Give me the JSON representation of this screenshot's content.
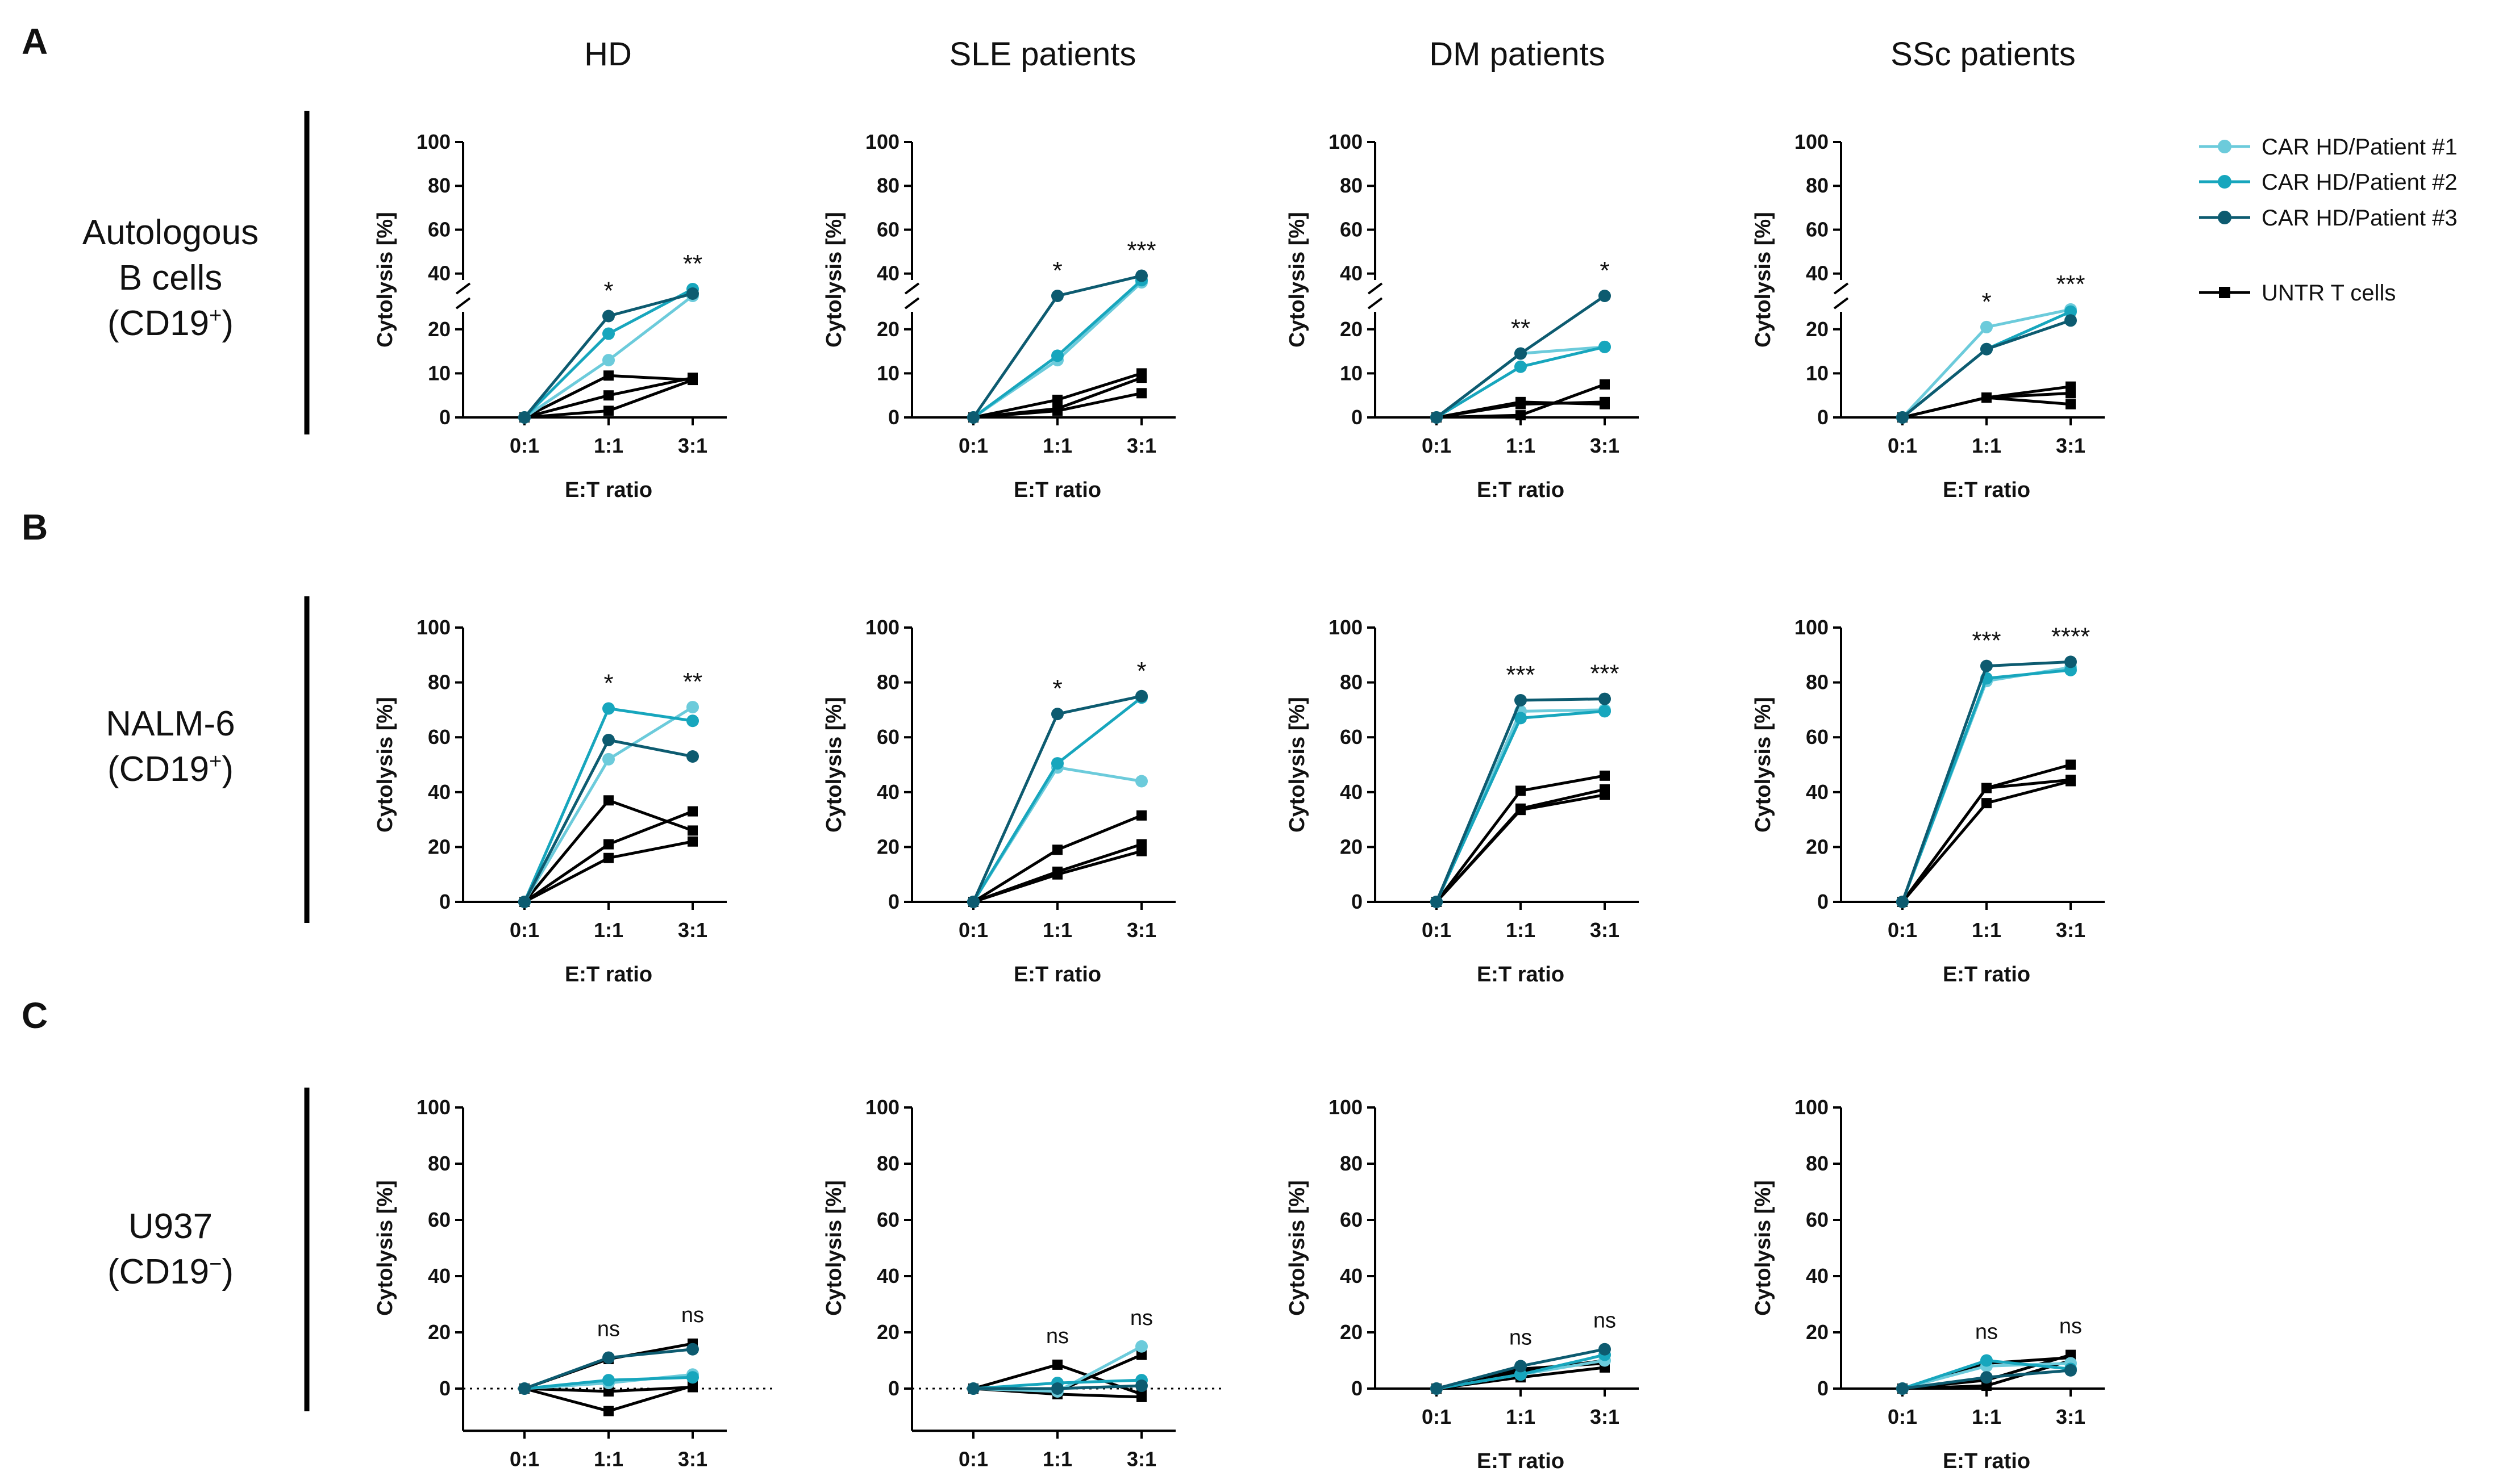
{
  "figure": {
    "column_titles": [
      "HD",
      "SLE patients",
      "DM patients",
      "SSc patients"
    ],
    "rows": [
      {
        "letter": "A",
        "label_lines": [
          "Autologous",
          "B cells",
          "(CD19",
          "+",
          ")"
        ]
      },
      {
        "letter": "B",
        "label_lines": [
          "NALM-6",
          "(CD19",
          "+",
          ")"
        ]
      },
      {
        "letter": "C",
        "label_lines": [
          "U937",
          "(CD19",
          "−",
          ")"
        ]
      }
    ],
    "legend": {
      "entries": [
        {
          "label": "CAR HD/Patient #1",
          "color": "#6ccbdb",
          "marker": "circle"
        },
        {
          "label": "CAR HD/Patient #2",
          "color": "#17a6bd",
          "marker": "circle"
        },
        {
          "label": "CAR HD/Patient #3",
          "color": "#0d5b70",
          "marker": "circle"
        },
        {
          "label": "UNTR T cells",
          "color": "#000000",
          "marker": "square"
        }
      ]
    }
  },
  "chart_data": [
    {
      "type": "line",
      "row": "A",
      "col": "HD",
      "title": "HD",
      "xlabel": "E:T ratio",
      "ylabel": "Cytolysis [%]",
      "categories": [
        "0:1",
        "1:1",
        "3:1"
      ],
      "ylim": [
        0,
        100
      ],
      "yticks": [
        0,
        10,
        20,
        40,
        60,
        80,
        100
      ],
      "axis_break": [
        25,
        35
      ],
      "series": [
        {
          "name": "CAR HD/Patient #1",
          "values": [
            0,
            13,
            30
          ]
        },
        {
          "name": "CAR HD/Patient #2",
          "values": [
            0,
            19,
            33
          ]
        },
        {
          "name": "CAR HD/Patient #3",
          "values": [
            0,
            23,
            31
          ]
        },
        {
          "name": "UNTR T cells",
          "values": [
            0,
            9.5,
            8.5
          ]
        },
        {
          "name": "UNTR T cells",
          "values": [
            0,
            5,
            9
          ]
        },
        {
          "name": "UNTR T cells",
          "values": [
            0,
            1.5,
            8.5
          ]
        }
      ],
      "significance": [
        "*",
        "**"
      ]
    },
    {
      "type": "line",
      "row": "A",
      "col": "SLE patients",
      "title": "SLE patients",
      "xlabel": "E:T ratio",
      "ylabel": "Cytolysis [%]",
      "categories": [
        "0:1",
        "1:1",
        "3:1"
      ],
      "ylim": [
        0,
        100
      ],
      "yticks": [
        0,
        10,
        20,
        40,
        60,
        80,
        100
      ],
      "axis_break": [
        25,
        35
      ],
      "series": [
        {
          "name": "CAR HD/Patient #1",
          "values": [
            0,
            13,
            36
          ]
        },
        {
          "name": "CAR HD/Patient #2",
          "values": [
            0,
            14,
            37
          ]
        },
        {
          "name": "CAR HD/Patient #3",
          "values": [
            0,
            30,
            39
          ]
        },
        {
          "name": "UNTR T cells",
          "values": [
            0,
            4,
            10
          ]
        },
        {
          "name": "UNTR T cells",
          "values": [
            0,
            2,
            9
          ]
        },
        {
          "name": "UNTR T cells",
          "values": [
            0,
            1.5,
            5.5
          ]
        }
      ],
      "significance": [
        "*",
        "***"
      ]
    },
    {
      "type": "line",
      "row": "A",
      "col": "DM patients",
      "title": "DM patients",
      "xlabel": "E:T ratio",
      "ylabel": "Cytolysis [%]",
      "categories": [
        "0:1",
        "1:1",
        "3:1"
      ],
      "ylim": [
        0,
        100
      ],
      "yticks": [
        0,
        10,
        20,
        40,
        60,
        80,
        100
      ],
      "axis_break": [
        25,
        35
      ],
      "series": [
        {
          "name": "CAR HD/Patient #1",
          "values": [
            0,
            14.5,
            16
          ]
        },
        {
          "name": "CAR HD/Patient #2",
          "values": [
            0,
            11.5,
            16
          ]
        },
        {
          "name": "CAR HD/Patient #3",
          "values": [
            0,
            14.5,
            30
          ]
        },
        {
          "name": "UNTR T cells",
          "values": [
            0,
            3.5,
            3
          ]
        },
        {
          "name": "UNTR T cells",
          "values": [
            0,
            3,
            3.5
          ]
        },
        {
          "name": "UNTR T cells",
          "values": [
            0,
            0.5,
            7.5
          ]
        }
      ],
      "significance": [
        "**",
        "*"
      ]
    },
    {
      "type": "line",
      "row": "A",
      "col": "SSc patients",
      "title": "SSc patients",
      "xlabel": "E:T ratio",
      "ylabel": "Cytolysis [%]",
      "categories": [
        "0:1",
        "1:1",
        "3:1"
      ],
      "ylim": [
        0,
        100
      ],
      "yticks": [
        0,
        10,
        20,
        40,
        60,
        80,
        100
      ],
      "axis_break": [
        25,
        35
      ],
      "series": [
        {
          "name": "CAR HD/Patient #1",
          "values": [
            0,
            20.5,
            24.5
          ]
        },
        {
          "name": "CAR HD/Patient #2",
          "values": [
            0,
            15.5,
            24
          ]
        },
        {
          "name": "CAR HD/Patient #3",
          "values": [
            0,
            15.5,
            22
          ]
        },
        {
          "name": "UNTR T cells",
          "values": [
            0,
            4.5,
            7
          ]
        },
        {
          "name": "UNTR T cells",
          "values": [
            0,
            4.5,
            5.5
          ]
        },
        {
          "name": "UNTR T cells",
          "values": [
            0,
            4.5,
            3
          ]
        }
      ],
      "significance": [
        "*",
        "***"
      ]
    },
    {
      "type": "line",
      "row": "B",
      "col": "HD",
      "title": "HD",
      "xlabel": "E:T ratio",
      "ylabel": "Cytolysis [%]",
      "categories": [
        "0:1",
        "1:1",
        "3:1"
      ],
      "ylim": [
        0,
        100
      ],
      "yticks": [
        0,
        20,
        40,
        60,
        80,
        100
      ],
      "series": [
        {
          "name": "CAR HD/Patient #1",
          "values": [
            0,
            52,
            71
          ]
        },
        {
          "name": "CAR HD/Patient #2",
          "values": [
            0,
            70.5,
            66
          ]
        },
        {
          "name": "CAR HD/Patient #3",
          "values": [
            0,
            59,
            53
          ]
        },
        {
          "name": "UNTR T cells",
          "values": [
            0,
            37,
            26
          ]
        },
        {
          "name": "UNTR T cells",
          "values": [
            0,
            21,
            33
          ]
        },
        {
          "name": "UNTR T cells",
          "values": [
            0,
            16,
            22
          ]
        }
      ],
      "significance": [
        "*",
        "**"
      ]
    },
    {
      "type": "line",
      "row": "B",
      "col": "SLE patients",
      "title": "SLE patients",
      "xlabel": "E:T ratio",
      "ylabel": "Cytolysis [%]",
      "categories": [
        "0:1",
        "1:1",
        "3:1"
      ],
      "ylim": [
        0,
        100
      ],
      "yticks": [
        0,
        20,
        40,
        60,
        80,
        100
      ],
      "series": [
        {
          "name": "CAR HD/Patient #1",
          "values": [
            0,
            49,
            44
          ]
        },
        {
          "name": "CAR HD/Patient #2",
          "values": [
            0,
            50.5,
            74.5
          ]
        },
        {
          "name": "CAR HD/Patient #3",
          "values": [
            0,
            68.5,
            75
          ]
        },
        {
          "name": "UNTR T cells",
          "values": [
            0,
            19,
            31.5
          ]
        },
        {
          "name": "UNTR T cells",
          "values": [
            0,
            11,
            21
          ]
        },
        {
          "name": "UNTR T cells",
          "values": [
            0,
            10,
            18.5
          ]
        }
      ],
      "significance": [
        "*",
        "*"
      ]
    },
    {
      "type": "line",
      "row": "B",
      "col": "DM patients",
      "title": "DM patients",
      "xlabel": "E:T ratio",
      "ylabel": "Cytolysis [%]",
      "categories": [
        "0:1",
        "1:1",
        "3:1"
      ],
      "ylim": [
        0,
        100
      ],
      "yticks": [
        0,
        20,
        40,
        60,
        80,
        100
      ],
      "series": [
        {
          "name": "CAR HD/Patient #1",
          "values": [
            0,
            69.5,
            70
          ]
        },
        {
          "name": "CAR HD/Patient #2",
          "values": [
            0,
            67,
            69.5
          ]
        },
        {
          "name": "CAR HD/Patient #3",
          "values": [
            0,
            73.5,
            74
          ]
        },
        {
          "name": "UNTR T cells",
          "values": [
            0,
            40.5,
            46
          ]
        },
        {
          "name": "UNTR T cells",
          "values": [
            0,
            34,
            41
          ]
        },
        {
          "name": "UNTR T cells",
          "values": [
            0,
            33.5,
            39
          ]
        }
      ],
      "significance": [
        "***",
        "***"
      ]
    },
    {
      "type": "line",
      "row": "B",
      "col": "SSc patients",
      "title": "SSc patients",
      "xlabel": "E:T ratio",
      "ylabel": "Cytolysis [%]",
      "categories": [
        "0:1",
        "1:1",
        "3:1"
      ],
      "ylim": [
        0,
        100
      ],
      "yticks": [
        0,
        20,
        40,
        60,
        80,
        100
      ],
      "series": [
        {
          "name": "CAR HD/Patient #1",
          "values": [
            0,
            80.5,
            85.5
          ]
        },
        {
          "name": "CAR HD/Patient #2",
          "values": [
            0,
            81.5,
            84.5
          ]
        },
        {
          "name": "CAR HD/Patient #3",
          "values": [
            0,
            86,
            87.5
          ]
        },
        {
          "name": "UNTR T cells",
          "values": [
            0,
            41.5,
            50
          ]
        },
        {
          "name": "UNTR T cells",
          "values": [
            0,
            41.5,
            44.5
          ]
        },
        {
          "name": "UNTR T cells",
          "values": [
            0,
            36,
            44
          ]
        }
      ],
      "significance": [
        "***",
        "****"
      ]
    },
    {
      "type": "line",
      "row": "C",
      "col": "HD",
      "title": "HD",
      "xlabel": "E:T ratio",
      "ylabel": "Cytolysis [%]",
      "categories": [
        "0:1",
        "1:1",
        "3:1"
      ],
      "ylim": [
        -15,
        100
      ],
      "yticks": [
        0,
        20,
        40,
        60,
        80,
        100
      ],
      "zero_line": "dotted",
      "series": [
        {
          "name": "CAR HD/Patient #1",
          "values": [
            0,
            2,
            5
          ]
        },
        {
          "name": "CAR HD/Patient #2",
          "values": [
            0,
            3,
            4
          ]
        },
        {
          "name": "CAR HD/Patient #3",
          "values": [
            0,
            11,
            14
          ]
        },
        {
          "name": "UNTR T cells",
          "values": [
            0,
            10.5,
            16
          ]
        },
        {
          "name": "UNTR T cells",
          "values": [
            0,
            -1,
            0.5
          ]
        },
        {
          "name": "UNTR T cells",
          "values": [
            0,
            -8,
            1
          ]
        }
      ],
      "significance": [
        "ns",
        "ns"
      ]
    },
    {
      "type": "line",
      "row": "C",
      "col": "SLE patients",
      "title": "SLE patients",
      "xlabel": "E:T ratio",
      "ylabel": "Cytolysis [%]",
      "categories": [
        "0:1",
        "1:1",
        "3:1"
      ],
      "ylim": [
        -15,
        100
      ],
      "yticks": [
        0,
        20,
        40,
        60,
        80,
        100
      ],
      "zero_line": "dotted",
      "series": [
        {
          "name": "CAR HD/Patient #1",
          "values": [
            0,
            -1,
            15
          ]
        },
        {
          "name": "CAR HD/Patient #2",
          "values": [
            0,
            2,
            3
          ]
        },
        {
          "name": "CAR HD/Patient #3",
          "values": [
            0,
            0,
            1
          ]
        },
        {
          "name": "UNTR T cells",
          "values": [
            0,
            8.5,
            -2
          ]
        },
        {
          "name": "UNTR T cells",
          "values": [
            0,
            -1,
            12
          ]
        },
        {
          "name": "UNTR T cells",
          "values": [
            0,
            -2,
            -3
          ]
        }
      ],
      "significance": [
        "ns",
        "ns"
      ]
    },
    {
      "type": "line",
      "row": "C",
      "col": "DM patients",
      "title": "DM patients",
      "xlabel": "E:T ratio",
      "ylabel": "Cytolysis [%]",
      "categories": [
        "0:1",
        "1:1",
        "3:1"
      ],
      "ylim": [
        0,
        100
      ],
      "yticks": [
        0,
        20,
        40,
        60,
        80,
        100
      ],
      "series": [
        {
          "name": "CAR HD/Patient #1",
          "values": [
            0,
            5,
            10
          ]
        },
        {
          "name": "CAR HD/Patient #2",
          "values": [
            0,
            5,
            12
          ]
        },
        {
          "name": "CAR HD/Patient #3",
          "values": [
            0,
            8,
            14
          ]
        },
        {
          "name": "UNTR T cells",
          "values": [
            0,
            6,
            10
          ]
        },
        {
          "name": "UNTR T cells",
          "values": [
            0,
            7,
            9
          ]
        },
        {
          "name": "UNTR T cells",
          "values": [
            0,
            4,
            7.5
          ]
        }
      ],
      "significance": [
        "ns",
        "ns"
      ]
    },
    {
      "type": "line",
      "row": "C",
      "col": "SSc patients",
      "title": "SSc patients",
      "xlabel": "E:T ratio",
      "ylabel": "Cytolysis [%]",
      "categories": [
        "0:1",
        "1:1",
        "3:1"
      ],
      "ylim": [
        0,
        100
      ],
      "yticks": [
        0,
        20,
        40,
        60,
        80,
        100
      ],
      "series": [
        {
          "name": "CAR HD/Patient #1",
          "values": [
            0,
            8,
            9
          ]
        },
        {
          "name": "CAR HD/Patient #2",
          "values": [
            0,
            10,
            7
          ]
        },
        {
          "name": "CAR HD/Patient #3",
          "values": [
            0,
            4,
            6.5
          ]
        },
        {
          "name": "UNTR T cells",
          "values": [
            0,
            9,
            11
          ]
        },
        {
          "name": "UNTR T cells",
          "values": [
            0,
            3,
            12
          ]
        },
        {
          "name": "UNTR T cells",
          "values": [
            0,
            1,
            10
          ]
        }
      ],
      "significance": [
        "ns",
        "ns"
      ]
    }
  ]
}
